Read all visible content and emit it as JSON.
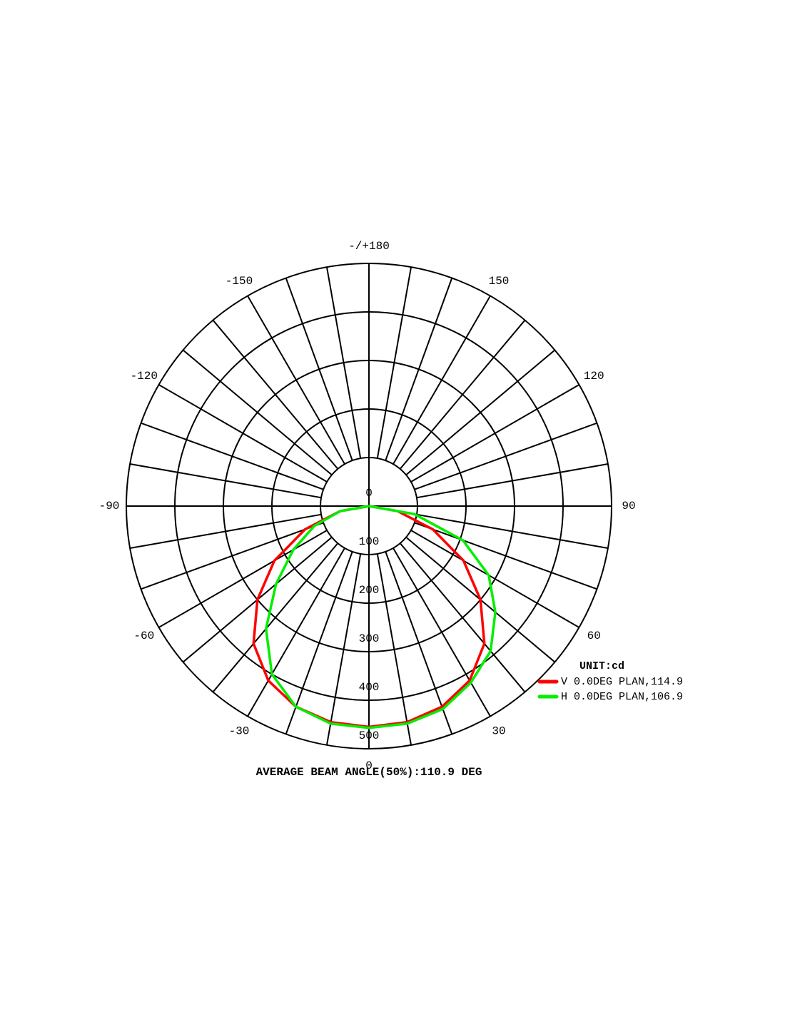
{
  "chart_data": {
    "type": "polar",
    "x": [
      -90,
      -80,
      -70,
      -60,
      -50,
      -40,
      -30,
      -20,
      -10,
      0,
      10,
      20,
      30,
      40,
      50,
      60,
      70,
      80,
      90
    ],
    "series": [
      {
        "name": "V 0.0DEG PLAN,114.9",
        "color": "#ff0000",
        "values": [
          0,
          60,
          140,
          225,
          300,
          370,
          415,
          440,
          452,
          455,
          452,
          440,
          415,
          370,
          300,
          225,
          140,
          60,
          0
        ]
      },
      {
        "name": "H 0.0DEG PLAN,106.9",
        "color": "#00ee00",
        "values": [
          0,
          60,
          120,
          180,
          250,
          330,
          400,
          440,
          455,
          457,
          455,
          445,
          420,
          390,
          340,
          285,
          206,
          95,
          0
        ]
      }
    ],
    "ylim": [
      0,
      500
    ],
    "yticks": [
      0,
      100,
      200,
      300,
      400,
      500
    ],
    "xticks": [
      {
        "value": 180,
        "label": "-/+180"
      },
      150,
      120,
      90,
      60,
      30,
      0,
      -30,
      -60,
      -90,
      -120,
      -150
    ],
    "grid": true,
    "unit_label": "UNIT:cd",
    "footer": "AVERAGE BEAM ANGLE(50%):110.9 DEG"
  }
}
